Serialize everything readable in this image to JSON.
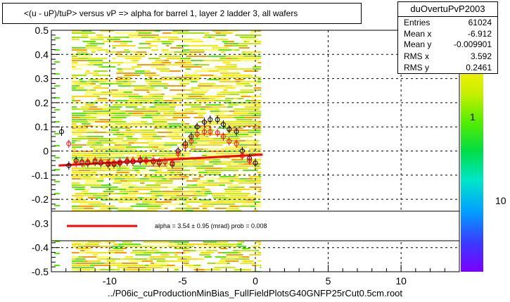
{
  "title": "<(u - uP)/tuP> versus   vP => alpha for barrel 1, layer 2 ladder 3, all wafers",
  "stats": {
    "name": "duOvertuPvP2003",
    "rows": [
      {
        "label": "Entries",
        "value": "61024"
      },
      {
        "label": "Mean x",
        "value": "-6.912"
      },
      {
        "label": "Mean y",
        "value": "-0.009901"
      },
      {
        "label": "RMS x",
        "value": "3.592"
      },
      {
        "label": "RMS y",
        "value": "0.2461"
      }
    ]
  },
  "fit_legend": "alpha =     3.54 ±   0.95 (mrad) prob = 0.008",
  "footer": "../P06ic_cuProductionMinBias_FullFieldPlotsG40GNFP25rCut0.5cm.root",
  "colorbar_labels": [
    "1",
    "10"
  ],
  "chart_data": {
    "type": "scatter",
    "title": "<(u - uP)/tuP> versus   vP => alpha for barrel 1, layer 2 ladder 3, all wafers",
    "xlim": [
      -14,
      14
    ],
    "ylim": [
      -0.5,
      0.5
    ],
    "x_ticks": [
      -10,
      -5,
      0,
      5,
      10
    ],
    "y_ticks": [
      -0.5,
      -0.4,
      -0.3,
      -0.2,
      -0.1,
      0,
      0.1,
      0.2,
      0.3,
      0.4,
      0.5
    ],
    "grid": true,
    "heatmap_x_range": [
      -12.6,
      0.4
    ],
    "series": [
      {
        "marker": "open-circle-black",
        "x": [
          -13.3,
          -12.8,
          -12.3,
          -11.9,
          -11.5,
          -11.0,
          -10.6,
          -10.1,
          -9.7,
          -9.3,
          -8.8,
          -8.4,
          -7.9,
          -7.5,
          -7.0,
          -6.6,
          -6.2,
          -5.7,
          -5.3,
          -4.8,
          -4.4,
          -4.0,
          -3.5,
          -3.1,
          -2.6,
          -2.2,
          -1.8,
          -1.3,
          -0.9,
          -0.4,
          0.0
        ],
        "y": [
          0.08,
          -0.06,
          -0.04,
          -0.045,
          -0.05,
          -0.045,
          -0.05,
          -0.055,
          -0.055,
          -0.05,
          -0.045,
          -0.045,
          -0.04,
          -0.04,
          -0.045,
          -0.05,
          -0.045,
          -0.055,
          0.0,
          0.03,
          0.06,
          0.1,
          0.12,
          0.13,
          0.13,
          0.11,
          0.09,
          0.08,
          0.0,
          -0.03,
          -0.05
        ]
      },
      {
        "marker": "open-circle-red",
        "x": [
          -12.8,
          -12.3,
          -11.9,
          -11.5,
          -11.0,
          -10.6,
          -10.1,
          -9.7,
          -9.3,
          -8.8,
          -8.4,
          -7.9,
          -7.5,
          -7.0,
          -6.6,
          -6.2,
          -5.7,
          -5.3,
          -4.8,
          -4.4,
          -4.0,
          -3.5,
          -3.1,
          -2.6,
          -2.2,
          -1.8,
          -1.3,
          -0.9,
          -0.4
        ],
        "y": [
          0.03,
          -0.05,
          -0.05,
          -0.045,
          -0.04,
          -0.045,
          -0.05,
          -0.05,
          -0.045,
          -0.04,
          -0.04,
          -0.035,
          -0.04,
          -0.04,
          -0.045,
          -0.045,
          -0.05,
          -0.01,
          0.02,
          0.04,
          0.07,
          0.08,
          0.08,
          0.075,
          0.06,
          0.04,
          0.03,
          -0.02,
          -0.04
        ]
      }
    ],
    "fit_line": {
      "x": [
        -13.5,
        0.5
      ],
      "y": [
        -0.06,
        -0.015
      ]
    }
  }
}
